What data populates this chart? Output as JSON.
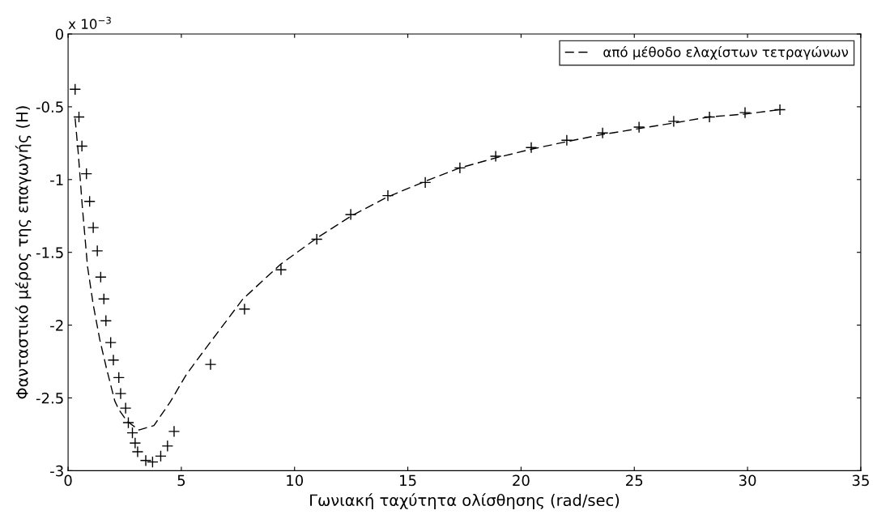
{
  "chart_data": {
    "type": "scatter",
    "xlabel": "Γωνιακή ταχύτητα ολίσθησης (rad/sec)",
    "ylabel": "Φανταστικό μέρος της επαγωγής (H)",
    "annotations": [
      "x 10$^{−3}$"
    ],
    "series": [
      {
        "marker": "cross",
        "color": "#000000",
        "x": [
          0.31,
          0.48,
          0.61,
          0.81,
          0.95,
          1.11,
          1.29,
          1.44,
          1.58,
          1.67,
          1.88,
          2.0,
          2.24,
          2.32,
          2.54,
          2.66,
          2.84,
          2.96,
          3.07,
          3.43,
          3.73,
          4.09,
          4.39,
          4.68,
          6.29,
          7.79,
          9.4,
          10.98,
          12.48,
          14.12,
          15.77,
          17.3,
          18.88,
          20.45,
          22.02,
          23.6,
          25.21,
          26.74,
          28.32,
          29.89,
          31.43
        ],
        "values": [
          -0.38,
          -0.57,
          -0.77,
          -0.96,
          -1.15,
          -1.33,
          -1.49,
          -1.67,
          -1.82,
          -1.97,
          -2.12,
          -2.24,
          -2.36,
          -2.47,
          -2.57,
          -2.67,
          -2.74,
          -2.81,
          -2.87,
          -2.93,
          -2.94,
          -2.9,
          -2.83,
          -2.73,
          -2.27,
          -1.89,
          -1.62,
          -1.41,
          -1.24,
          -1.11,
          -1.02,
          -0.92,
          -0.84,
          -0.78,
          -0.73,
          -0.68,
          -0.64,
          -0.6,
          -0.57,
          -0.54,
          -0.52
        ]
      },
      {
        "type": "line",
        "name": "από μέθοδο ελαχίστων τετραγώνων",
        "line_style": "dashed",
        "color": "#000000",
        "x": [
          0.31,
          0.45,
          0.63,
          0.86,
          1.11,
          1.4,
          1.7,
          2.06,
          2.24,
          2.6,
          3.13,
          3.79,
          4.5,
          5.22,
          5.93,
          7.72,
          9.4,
          11.0,
          12.5,
          14.1,
          15.8,
          17.3,
          18.9,
          20.5,
          22.0,
          23.6,
          25.2,
          26.8,
          28.3,
          29.9,
          31.4
        ],
        "values": [
          -0.58,
          -0.82,
          -1.19,
          -1.6,
          -1.86,
          -2.1,
          -2.3,
          -2.52,
          -2.58,
          -2.66,
          -2.72,
          -2.69,
          -2.53,
          -2.34,
          -2.19,
          -1.82,
          -1.58,
          -1.4,
          -1.25,
          -1.12,
          -1.01,
          -0.92,
          -0.85,
          -0.79,
          -0.74,
          -0.69,
          -0.65,
          -0.61,
          -0.57,
          -0.55,
          -0.52
        ]
      }
    ],
    "xlim": [
      0,
      35
    ],
    "xticks": [
      0,
      5,
      10,
      15,
      20,
      25,
      30,
      35
    ],
    "ylim": [
      -3,
      0
    ],
    "yticks": [
      -3,
      -2.5,
      -2,
      -1.5,
      -1,
      -0.5,
      0
    ],
    "grid": false,
    "legend": "top right"
  }
}
